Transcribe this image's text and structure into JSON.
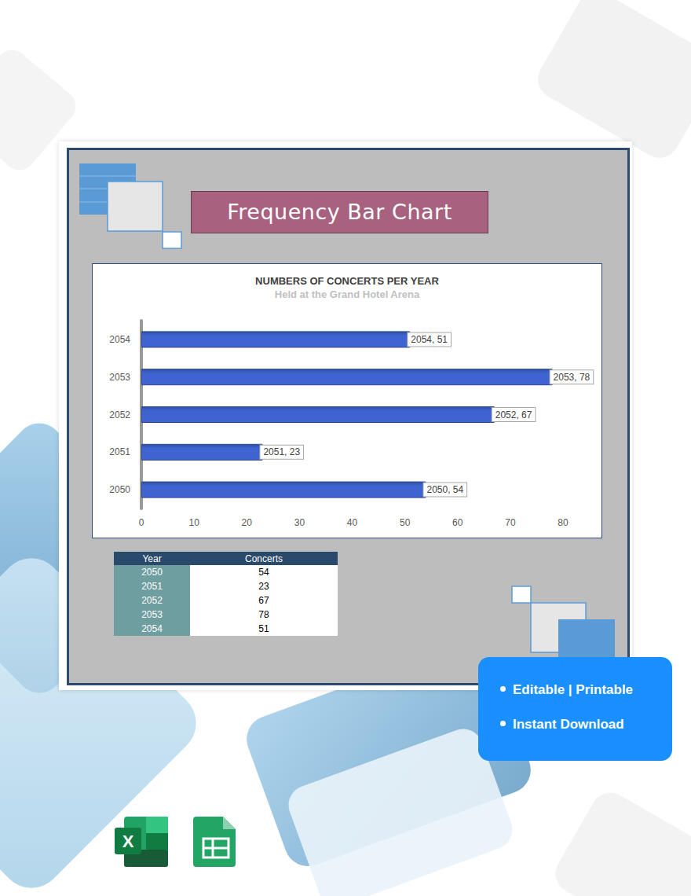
{
  "header": {
    "title": "Frequency Bar Chart"
  },
  "chart_data": {
    "type": "bar",
    "orientation": "horizontal",
    "title": "NUMBERS OF CONCERTS PER YEAR",
    "subtitle": "Held at the Grand Hotel Arena",
    "categories": [
      "2050",
      "2051",
      "2052",
      "2053",
      "2054"
    ],
    "values": [
      54,
      23,
      67,
      78,
      51
    ],
    "value_labels": [
      "2050, 54",
      "2051, 23",
      "2052, 67",
      "2053, 78",
      "2054, 51"
    ],
    "data_labels": true,
    "color": "#3f63d1",
    "xlim": [
      0,
      80
    ],
    "xticks": [
      0,
      10,
      20,
      30,
      40,
      50,
      60,
      70,
      80
    ],
    "grid": false
  },
  "table": {
    "header": [
      "Year",
      "Concerts"
    ],
    "rows": [
      [
        "2050",
        54
      ],
      [
        "2051",
        23
      ],
      [
        "2052",
        67
      ],
      [
        "2053",
        78
      ],
      [
        "2054",
        51
      ]
    ]
  },
  "badge": {
    "items": [
      "Editable | Printable",
      "Instant Download"
    ]
  },
  "app_icons": {
    "excel": "X"
  }
}
